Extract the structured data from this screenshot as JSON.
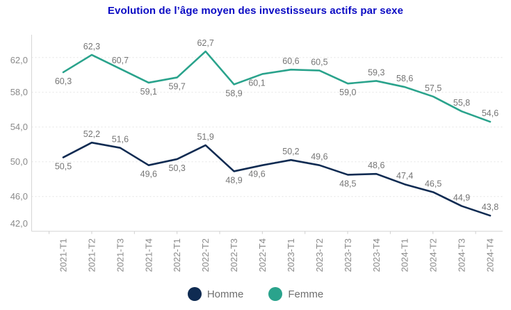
{
  "title": "Evolution de l’âge moyen des investisseurs actifs par sexe",
  "chart_data": {
    "type": "line",
    "title": "Evolution de l’âge moyen des investisseurs actifs par sexe",
    "categories": [
      "2021-T1",
      "2021-T2",
      "2021-T3",
      "2021-T4",
      "2022-T1",
      "2022-T2",
      "2022-T3",
      "2022-T4",
      "2023-T1",
      "2023-T2",
      "2023-T3",
      "2023-T4",
      "2024-T1",
      "2024-T2",
      "2024-T3",
      "2024-T4"
    ],
    "series": [
      {
        "name": "Homme",
        "color": "#0f2b52",
        "values": [
          50.5,
          52.2,
          51.6,
          49.6,
          50.3,
          51.9,
          48.9,
          49.6,
          50.2,
          49.6,
          48.5,
          48.6,
          47.4,
          46.5,
          44.9,
          43.8
        ],
        "label_sides": [
          "below",
          "above",
          "above",
          "below",
          "below",
          "above",
          "below",
          "below",
          "above",
          "above",
          "below",
          "above",
          "above",
          "above",
          "above",
          "above"
        ]
      },
      {
        "name": "Femme",
        "color": "#2aa38c",
        "values": [
          60.3,
          62.3,
          60.7,
          59.1,
          59.7,
          62.7,
          58.9,
          60.1,
          60.6,
          60.5,
          59.0,
          59.3,
          58.6,
          57.5,
          55.8,
          54.6
        ],
        "label_sides": [
          "below",
          "above",
          "above",
          "below",
          "below",
          "above",
          "below",
          "below",
          "above",
          "above",
          "below",
          "above",
          "above",
          "above",
          "above",
          "above"
        ]
      }
    ],
    "label_dx": [
      0,
      0,
      0,
      0,
      0,
      0,
      0,
      -8,
      0,
      0,
      0,
      0,
      0,
      0,
      0,
      0
    ],
    "y_ticks": [
      {
        "value": 62,
        "label": "62,0"
      },
      {
        "value": 58,
        "label": "58,0"
      },
      {
        "value": 54,
        "label": "54,0"
      },
      {
        "value": 50,
        "label": "50,0"
      },
      {
        "value": 46,
        "label": "46,0"
      },
      {
        "value": 42,
        "label": "42,0"
      }
    ],
    "ylim": [
      42,
      64.6
    ],
    "grid": "horizontal-dashed",
    "legend_position": "bottom",
    "decimal_separator": ","
  },
  "legend": {
    "items": [
      {
        "label": "Homme",
        "color": "#0f2b52"
      },
      {
        "label": "Femme",
        "color": "#2aa38c"
      }
    ]
  },
  "colors": {
    "title": "#0b0bc4",
    "data_label": "#757575",
    "axis_label": "#8a8a8a",
    "gridline": "#e4e4e4",
    "axis_line": "#d6d6d6",
    "tick_mark": "#cfcfcf",
    "legend_text": "#6f6f6f",
    "background": "#ffffff"
  }
}
